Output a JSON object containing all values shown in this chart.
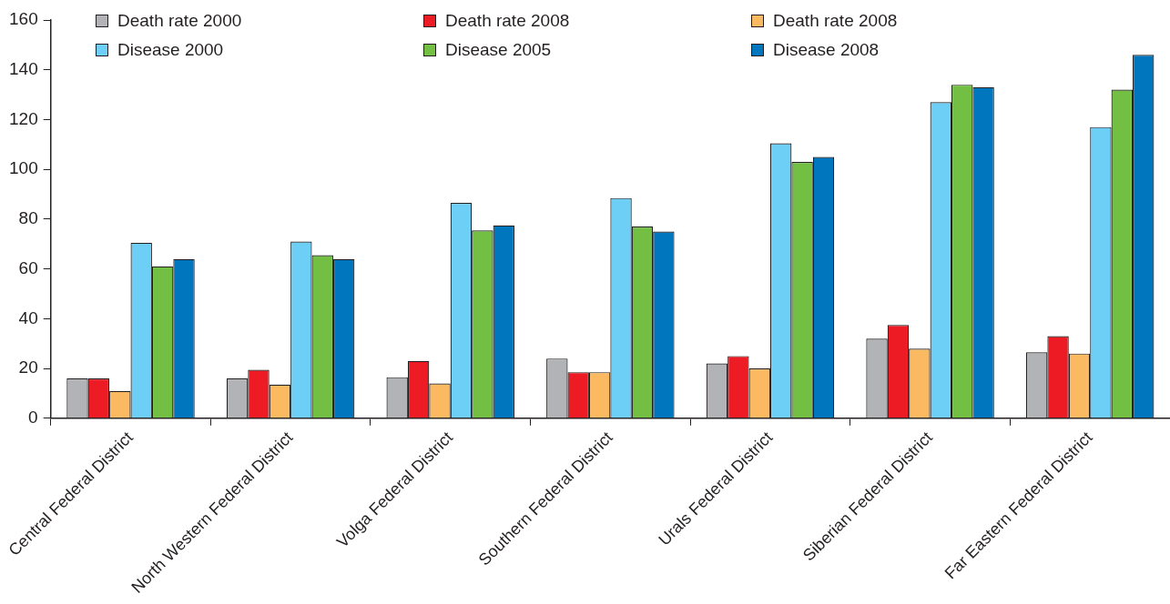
{
  "chart_data": {
    "type": "bar",
    "categories": [
      "Central Federal District",
      "North Western Federal District",
      "Volga Federal District",
      "Southern Federal District",
      "Urals Federal District",
      "Siberian Federal District",
      "Far Eastern Federal District"
    ],
    "series": [
      {
        "name": "Death rate 2000",
        "color": "#b1b3b6",
        "values": [
          16,
          16,
          16.5,
          24,
          22,
          32,
          26.5
        ]
      },
      {
        "name": "Death rate 2008",
        "color": "#ed1c24",
        "values": [
          16,
          19.5,
          23,
          18.5,
          25,
          37.5,
          33
        ]
      },
      {
        "name": "Death rate 2008",
        "color": "#fbb961",
        "values": [
          11,
          13.5,
          14,
          18.5,
          20,
          28,
          26
        ]
      },
      {
        "name": "Disease 2000",
        "color": "#6dcff6",
        "values": [
          70.5,
          71,
          86.5,
          88.5,
          110.5,
          127,
          117
        ]
      },
      {
        "name": "Disease 2005",
        "color": "#72bf44",
        "values": [
          61,
          65.5,
          75.5,
          77,
          103,
          134,
          132
        ]
      },
      {
        "name": "Disease 2008",
        "color": "#0076be",
        "values": [
          64,
          64,
          77.5,
          75,
          105,
          133,
          146
        ]
      }
    ],
    "ylim": [
      0,
      160
    ],
    "yticks": [
      0,
      20,
      40,
      60,
      80,
      100,
      120,
      140,
      160
    ],
    "grid": false,
    "legend": "top"
  }
}
